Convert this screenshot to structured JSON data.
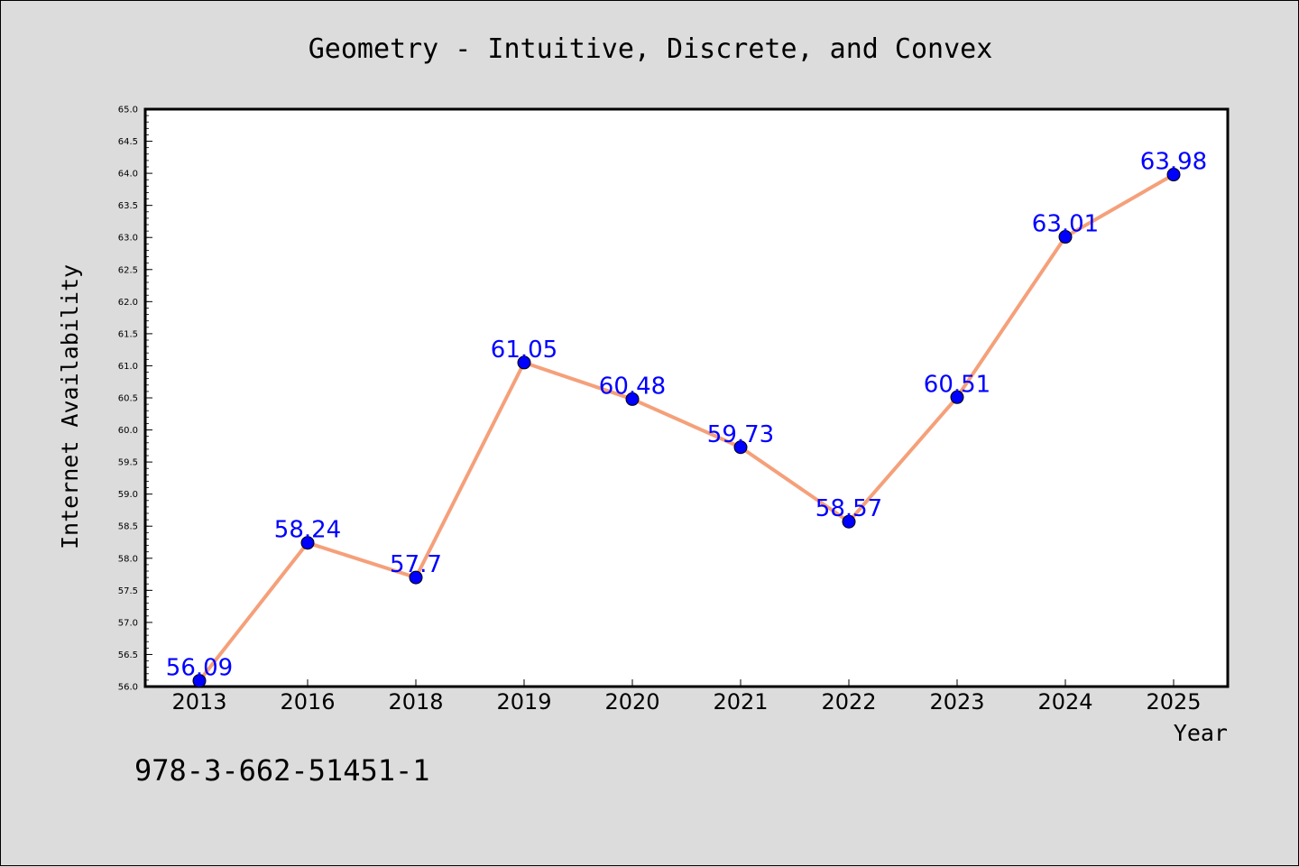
{
  "chart_data": {
    "type": "line",
    "title": "Geometry - Intuitive, Discrete, and Convex",
    "xlabel": "Year",
    "ylabel": "Internet Availability",
    "categories": [
      "2013",
      "2016",
      "2018",
      "2019",
      "2020",
      "2021",
      "2022",
      "2023",
      "2024",
      "2025"
    ],
    "series": [
      {
        "values": [
          56.09,
          58.24,
          57.7,
          61.05,
          60.48,
          59.73,
          58.57,
          60.51,
          63.01,
          63.98
        ],
        "data_labels": [
          "56.09",
          "58.24",
          "57.7",
          "61.05",
          "60.48",
          "59.73",
          "58.57",
          "60.51",
          "63.01",
          "63.98"
        ],
        "line_color": "#f5a07a",
        "marker_color": "#0000ff"
      }
    ],
    "ylim": [
      56.0,
      65.0
    ],
    "yticks": [
      "56.0",
      "56.5",
      "57.0",
      "57.5",
      "58.0",
      "58.5",
      "59.0",
      "59.5",
      "60.0",
      "60.5",
      "61.0",
      "61.5",
      "62.0",
      "62.5",
      "63.0",
      "63.5",
      "64.0",
      "64.5",
      "65.0"
    ],
    "grid": false,
    "legend": "none"
  },
  "footer_text": "978-3-662-51451-1",
  "colors": {
    "background": "#dcdcdc",
    "plot_area": "#ffffff",
    "line": "#f5a07a",
    "marker": "#0000ff",
    "data_label": "#0000ff"
  }
}
